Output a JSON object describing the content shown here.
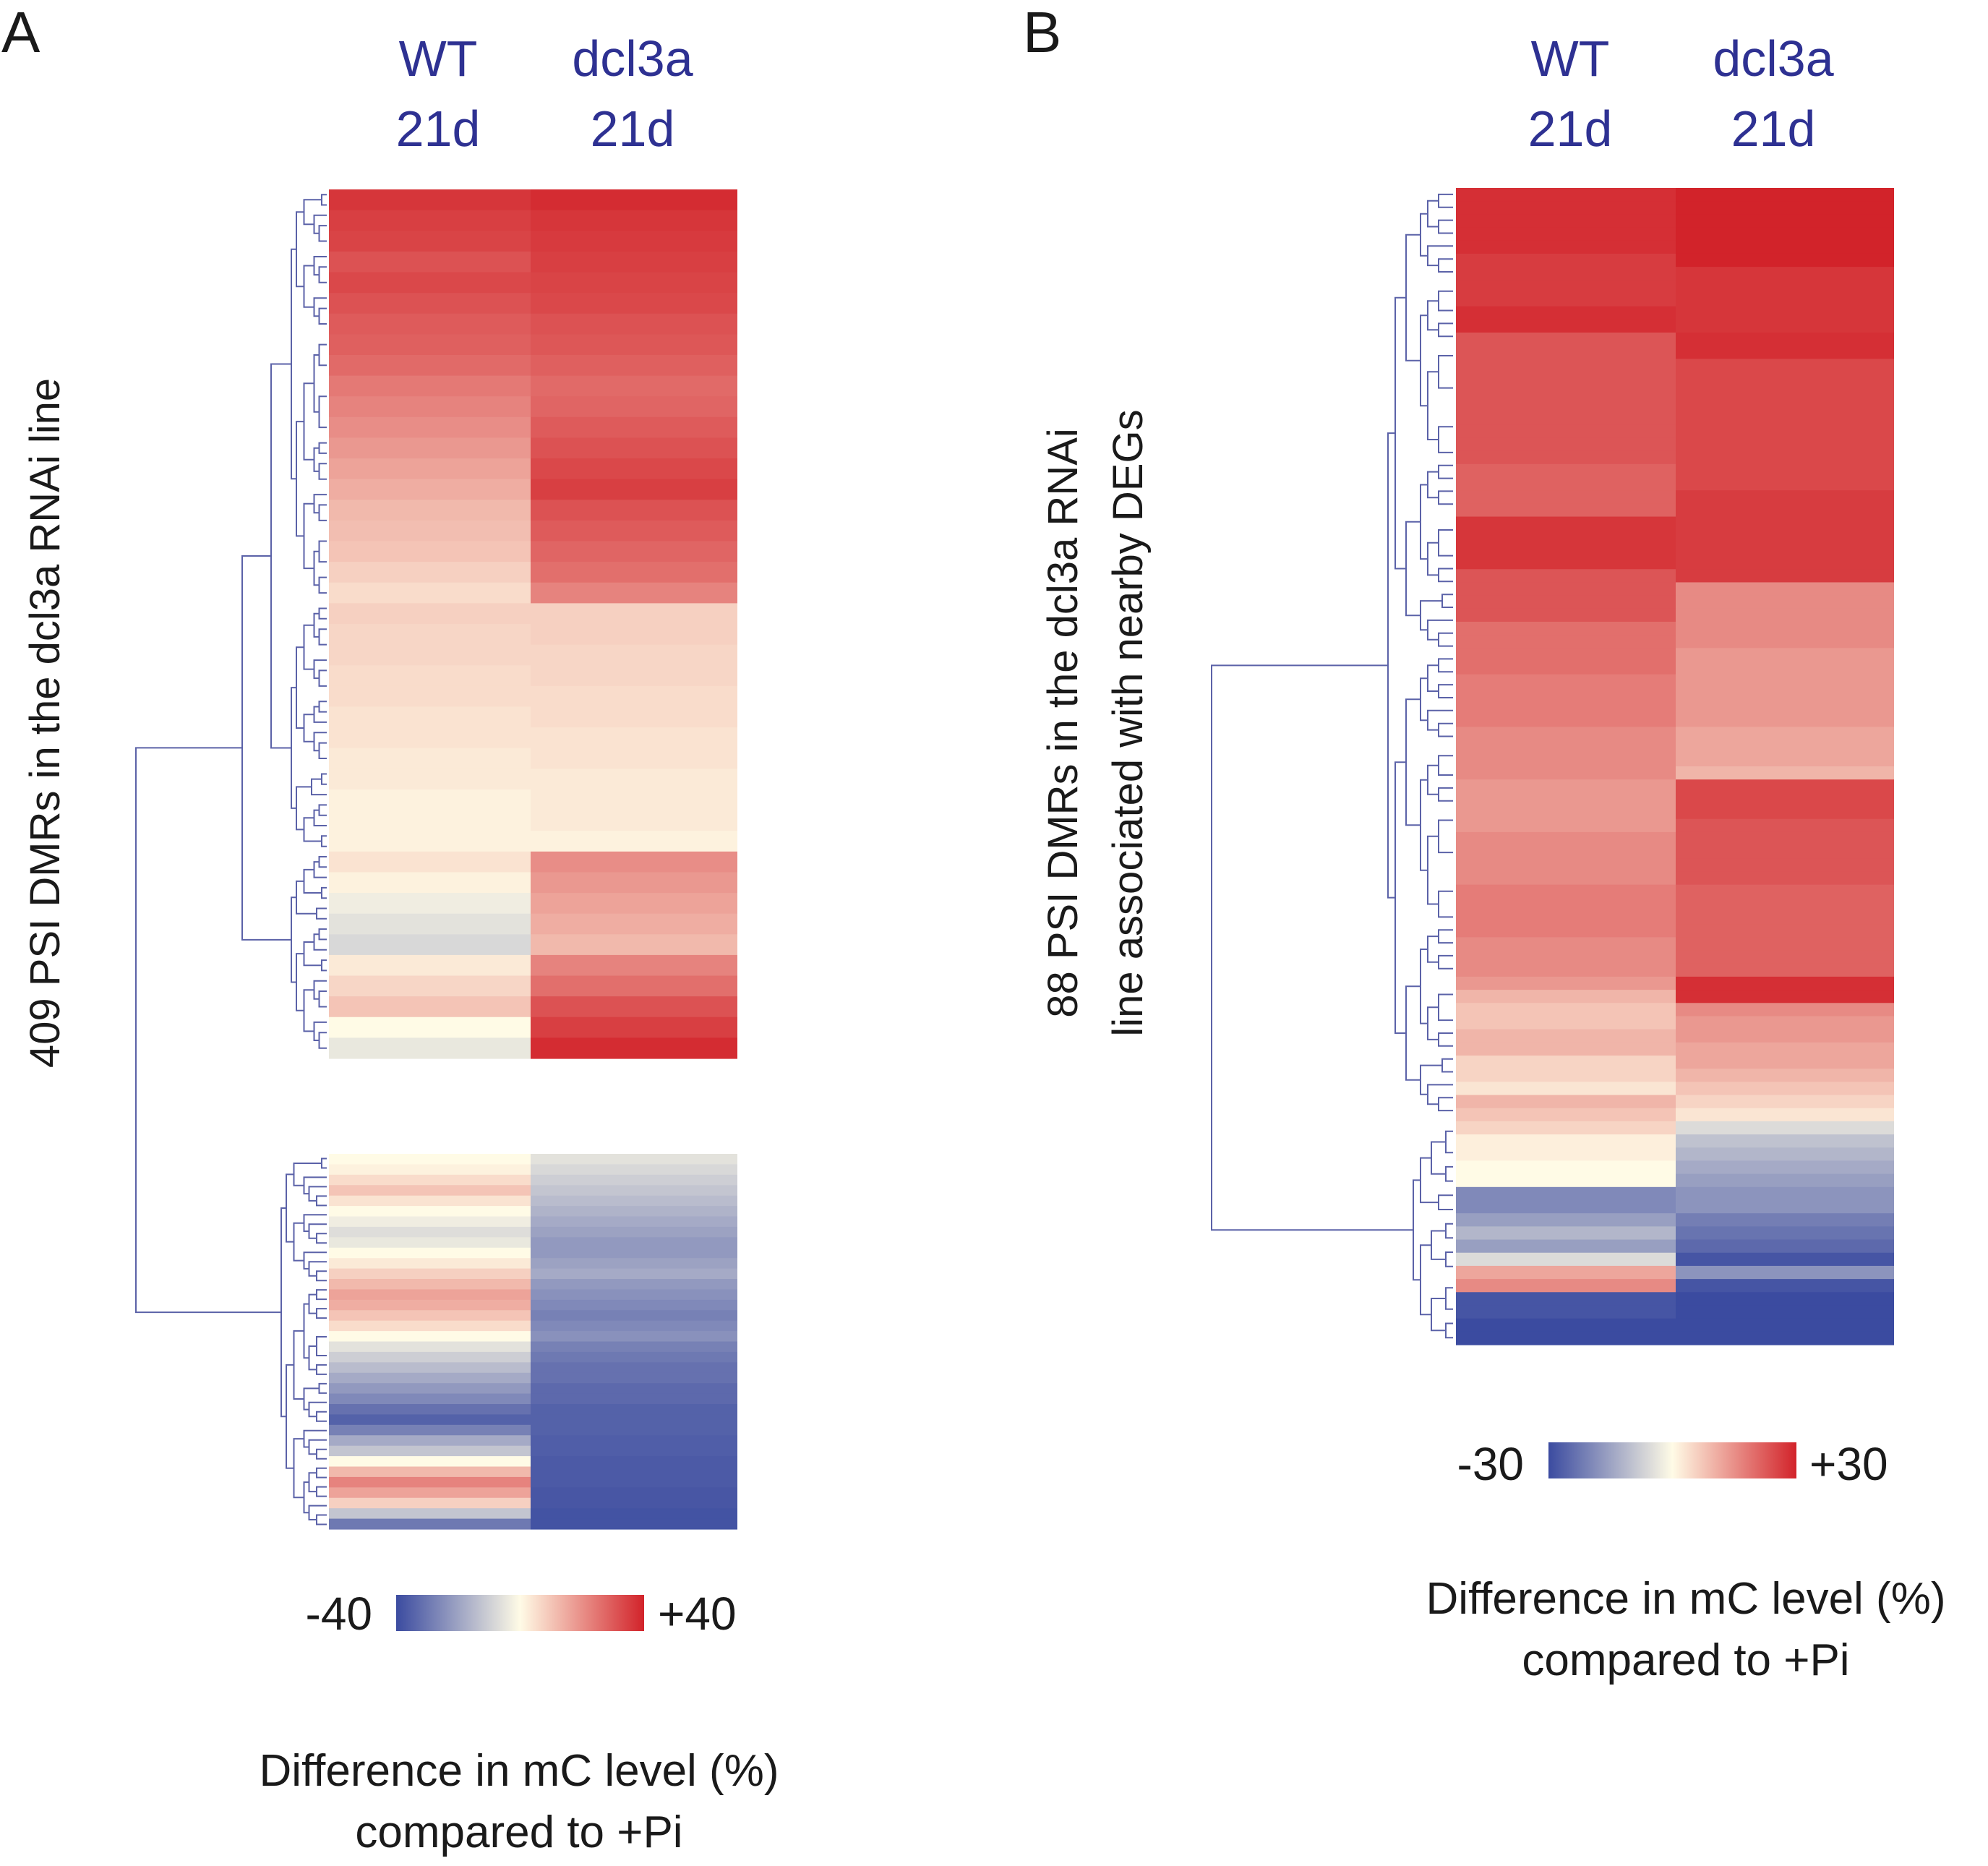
{
  "chart_data": [
    {
      "type": "heatmap",
      "panel": "A",
      "columns": [
        {
          "line1": "WT",
          "line2": "21d"
        },
        {
          "line1": "dcl3a",
          "line2": "21d"
        }
      ],
      "row_label": "409 PSI DMRs in the dcl3a RNAi line",
      "n_rows": 409,
      "colorbar": {
        "min_label": "-40",
        "max_label": "+40",
        "min": -40,
        "max": 40,
        "colors": [
          "#3b4ba0",
          "#fffbe6",
          "#d2232a"
        ]
      },
      "caption": [
        "Difference in mC level (%)",
        "compared to +Pi"
      ],
      "clusters": [
        {
          "wt": [
            36,
            34,
            33,
            30,
            32,
            30,
            28,
            27,
            25,
            22,
            20,
            18,
            16,
            14,
            12,
            10,
            9,
            8,
            6,
            4
          ],
          "dcl3a": [
            38,
            36,
            35,
            34,
            33,
            32,
            30,
            29,
            27,
            25,
            26,
            28,
            30,
            32,
            34,
            30,
            28,
            26,
            24,
            20
          ]
        },
        {
          "wt": [
            6,
            5,
            5,
            4,
            4,
            3,
            3,
            2,
            2,
            1,
            1,
            1
          ],
          "dcl3a": [
            6,
            6,
            5,
            5,
            4,
            4,
            3,
            3,
            2,
            2,
            2,
            1
          ]
        },
        {
          "wt": [
            3,
            1,
            -2,
            -4,
            -6,
            2,
            5,
            8,
            0,
            -3
          ],
          "dcl3a": [
            18,
            16,
            14,
            12,
            10,
            20,
            24,
            30,
            34,
            38
          ]
        },
        {
          "wt": [
            0,
            1,
            4,
            8,
            3,
            0,
            -2,
            -5,
            -3,
            0,
            2,
            6,
            10,
            14,
            12,
            8,
            4,
            0,
            -4,
            -8,
            -12,
            -16,
            -20,
            -24,
            -30,
            -34,
            -26,
            -16,
            -10,
            0,
            10,
            20,
            14,
            6,
            -10,
            -28
          ],
          "dcl3a": [
            -4,
            -6,
            -8,
            -10,
            -12,
            -14,
            -16,
            -18,
            -20,
            -20,
            -18,
            -16,
            -20,
            -22,
            -24,
            -26,
            -24,
            -22,
            -26,
            -28,
            -30,
            -30,
            -32,
            -32,
            -34,
            -34,
            -34,
            -35,
            -35,
            -36,
            -36,
            -36,
            -37,
            -37,
            -38,
            -38
          ]
        }
      ]
    },
    {
      "type": "heatmap",
      "panel": "B",
      "columns": [
        {
          "line1": "WT",
          "line2": "21d"
        },
        {
          "line1": "dcl3a",
          "line2": "21d"
        }
      ],
      "row_label_lines": [
        "88 PSI DMRs in the dcl3a RNAi",
        "line associated with nearby DEGs"
      ],
      "n_rows": 88,
      "colorbar": {
        "min_label": "-30",
        "max_label": "+30",
        "min": -30,
        "max": 30,
        "colors": [
          "#3b4ba0",
          "#fffbe6",
          "#d2232a"
        ]
      },
      "caption": [
        "Difference in mC level (%)",
        "compared to +Pi"
      ],
      "rows": {
        "wt": [
          28,
          28,
          28,
          28,
          28,
          26,
          26,
          26,
          26,
          28,
          28,
          22,
          22,
          22,
          22,
          22,
          22,
          22,
          22,
          22,
          22,
          20,
          20,
          20,
          20,
          27,
          27,
          27,
          27,
          22,
          22,
          22,
          22,
          18,
          18,
          18,
          18,
          16,
          16,
          16,
          16,
          14,
          14,
          14,
          14,
          12,
          12,
          12,
          12,
          14,
          14,
          14,
          14,
          16,
          16,
          16,
          16,
          14,
          14,
          14,
          12,
          8,
          6,
          6,
          8,
          8,
          4,
          4,
          2,
          8,
          6,
          4,
          1,
          1,
          0,
          0,
          -18,
          -18,
          -14,
          -10,
          -14,
          -4,
          10,
          14,
          -28,
          -28,
          -30,
          -30
        ],
        "dcl3a": [
          30,
          30,
          30,
          30,
          30,
          30,
          27,
          27,
          27,
          27,
          27,
          28,
          28,
          24,
          24,
          24,
          24,
          24,
          24,
          24,
          24,
          24,
          24,
          26,
          26,
          26,
          26,
          26,
          26,
          26,
          14,
          14,
          14,
          14,
          14,
          12,
          12,
          12,
          12,
          12,
          12,
          10,
          10,
          10,
          8,
          24,
          24,
          24,
          22,
          22,
          22,
          22,
          22,
          20,
          20,
          20,
          20,
          20,
          20,
          20,
          28,
          28,
          14,
          12,
          12,
          10,
          10,
          8,
          6,
          4,
          2,
          -4,
          -8,
          -10,
          -12,
          -14,
          -16,
          -16,
          -20,
          -22,
          -24,
          -28,
          -16,
          -28,
          -30,
          -30,
          -30,
          -30
        ]
      }
    }
  ]
}
